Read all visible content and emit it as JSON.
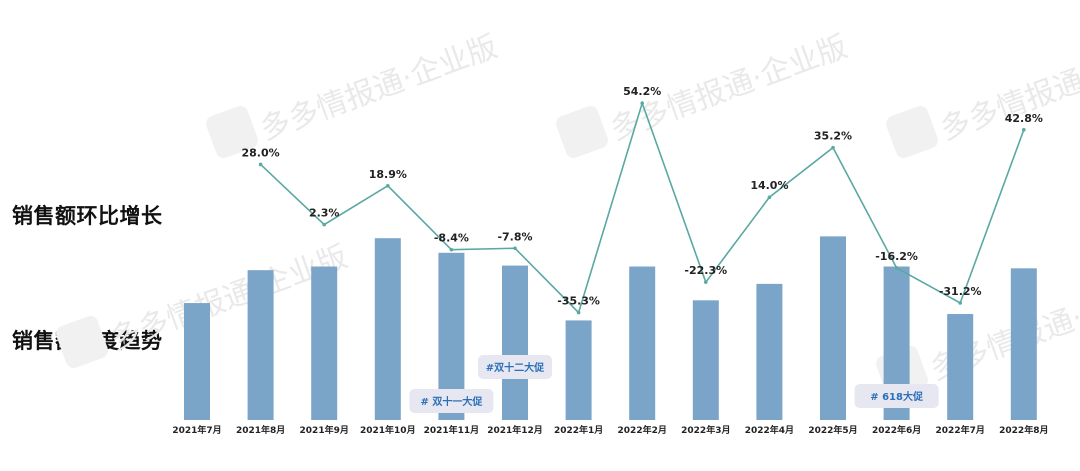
{
  "side_titles": {
    "mom": "销售额环比增长",
    "trend": "销售额月度趋势"
  },
  "watermark": "多多情报通·企业版",
  "colors": {
    "bar": "#7aa5c9",
    "line": "#5aa8a3"
  },
  "chart_data": {
    "type": "bar",
    "categories": [
      "2021年7月",
      "2021年8月",
      "2021年9月",
      "2021年10月",
      "2021年11月",
      "2021年12月",
      "2022年1月",
      "2022年2月",
      "2022年3月",
      "2022年4月",
      "2022年5月",
      "2022年6月",
      "2022年7月",
      "2022年8月"
    ],
    "series": [
      {
        "type": "bar",
        "values": [
          128,
          164,
          168,
          199,
          183,
          169,
          109,
          168,
          131,
          149,
          201,
          168,
          116,
          166
        ]
      },
      {
        "type": "line",
        "values": [
          null,
          28.0,
          2.3,
          18.9,
          -8.4,
          -7.8,
          -35.3,
          54.2,
          -22.3,
          14.0,
          35.2,
          -16.2,
          -31.2,
          42.8
        ],
        "labels": [
          "",
          "28.0%",
          "2.3%",
          "18.9%",
          "-8.4%",
          "-7.8%",
          "-35.3%",
          "54.2%",
          "-22.3%",
          "14.0%",
          "35.2%",
          "-16.2%",
          "-31.2%",
          "42.8%"
        ]
      }
    ],
    "annotations": [
      {
        "text": "# 双十一大促",
        "category": "2021年11月"
      },
      {
        "text": "#双十二大促",
        "category": "2021年12月"
      },
      {
        "text": "# 618大促",
        "category": "2022年6月"
      }
    ]
  }
}
